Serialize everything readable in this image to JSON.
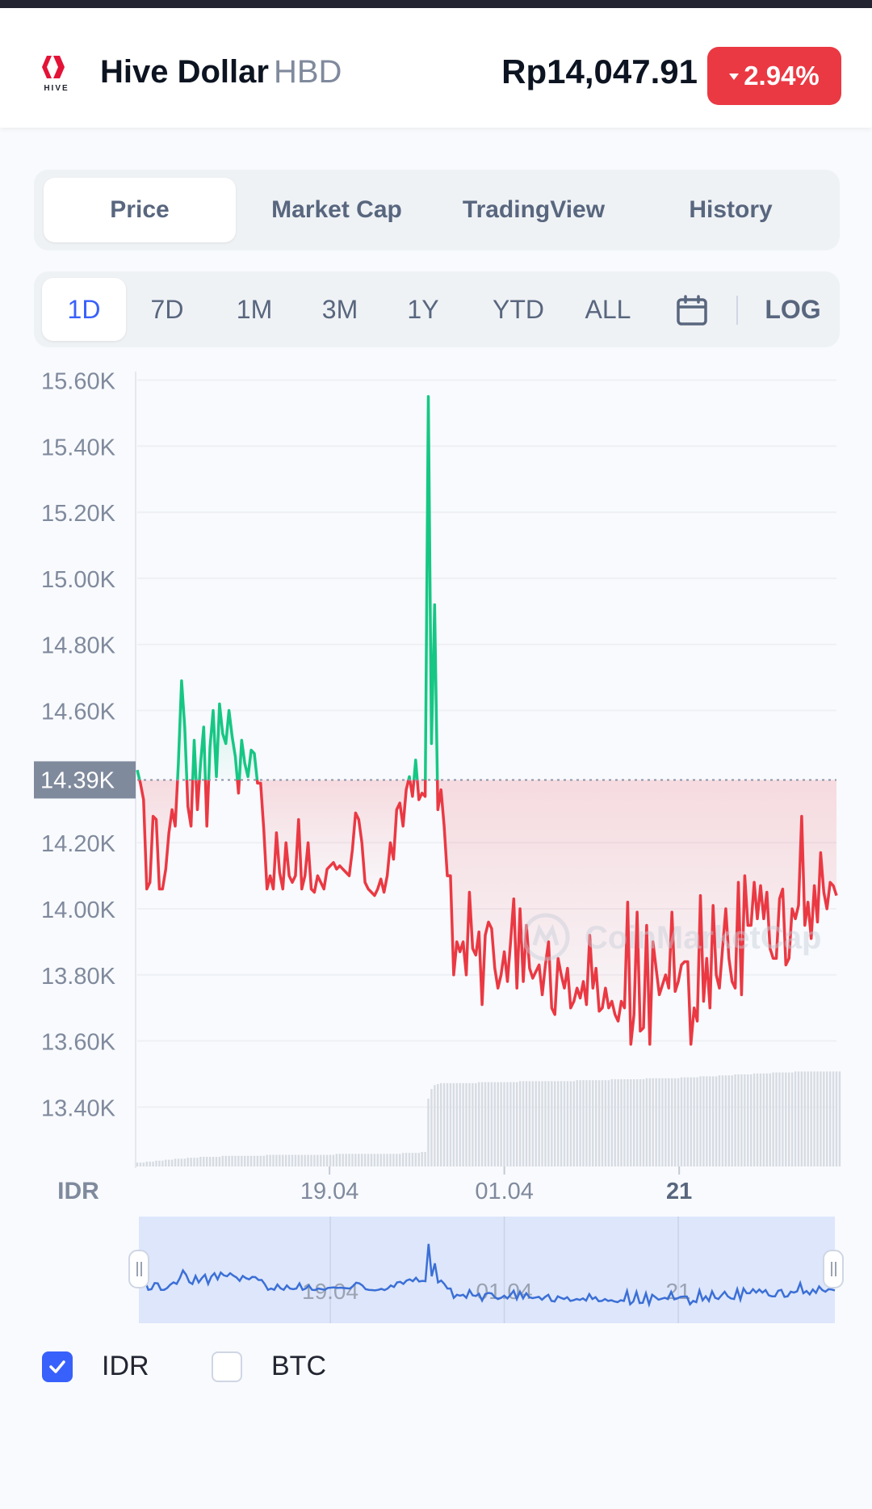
{
  "header": {
    "name": "Hive Dollar",
    "symbol": "HBD",
    "price": "Rp14,047.91",
    "change": "2.94%",
    "change_color": "#ea3943",
    "logo_text": "HIVE"
  },
  "tabs": [
    {
      "label": "Price",
      "active": true
    },
    {
      "label": "Market Cap",
      "active": false
    },
    {
      "label": "TradingView",
      "active": false
    },
    {
      "label": "History",
      "active": false
    }
  ],
  "ranges": [
    {
      "label": "1D",
      "active": true
    },
    {
      "label": "7D",
      "active": false
    },
    {
      "label": "1M",
      "active": false
    },
    {
      "label": "3M",
      "active": false
    },
    {
      "label": "1Y",
      "active": false
    },
    {
      "label": "YTD",
      "active": false
    },
    {
      "label": "ALL",
      "active": false
    }
  ],
  "log_label": "LOG",
  "calendar_icon": "calendar-icon",
  "watermark": "CoinMarketCap",
  "chart_data": {
    "type": "line",
    "ylabel": "IDR",
    "yticks": [
      "15.60K",
      "15.40K",
      "15.20K",
      "15.00K",
      "14.80K",
      "14.60K",
      "14.20K",
      "14.00K",
      "13.80K",
      "13.60K",
      "13.40K"
    ],
    "ylim": [
      13230,
      15650
    ],
    "xticks": [
      "19.04",
      "01.04",
      "21"
    ],
    "reference_value": 14390,
    "reference_label": "14.39K",
    "up_color": "#16c784",
    "down_color": "#ea3943",
    "series": [
      {
        "values": [
          14420,
          14380,
          14330,
          14060,
          14080,
          14280,
          14270,
          14060,
          14060,
          14120,
          14230,
          14300,
          14250,
          14440,
          14690,
          14550,
          14310,
          14250,
          14510,
          14300,
          14440,
          14550,
          14250,
          14490,
          14600,
          14400,
          14620,
          14530,
          14500,
          14600,
          14520,
          14460,
          14350,
          14510,
          14440,
          14400,
          14480,
          14470,
          14380,
          14380,
          14240,
          14060,
          14100,
          14060,
          14230,
          14110,
          14060,
          14200,
          14100,
          14080,
          14100,
          14270,
          14060,
          14100,
          14200,
          14060,
          14050,
          14100,
          14080,
          14060,
          14120,
          14130,
          14140,
          14120,
          14130,
          14120,
          14110,
          14100,
          14180,
          14290,
          14270,
          14200,
          14080,
          14060,
          14050,
          14040,
          14060,
          14090,
          14050,
          14100,
          14200,
          14150,
          14300,
          14320,
          14250,
          14360,
          14400,
          14340,
          14450,
          14330,
          14350,
          14340,
          15550,
          14500,
          14920,
          14300,
          14360,
          14250,
          14100,
          14100,
          13800,
          13900,
          13870,
          13900,
          13800,
          14050,
          13880,
          13860,
          13930,
          13710,
          13920,
          13960,
          13940,
          13820,
          13760,
          13800,
          13870,
          13780,
          13900,
          14030,
          13760,
          14000,
          13780,
          13950,
          13820,
          13790,
          13810,
          13830,
          13740,
          13830,
          13900,
          13700,
          13680,
          13850,
          13800,
          13760,
          13820,
          13700,
          13720,
          13760,
          13730,
          13780,
          13710,
          13920,
          13760,
          13820,
          13690,
          13700,
          13760,
          13700,
          13720,
          13680,
          13660,
          13720,
          13700,
          14020,
          13590,
          13680,
          13990,
          13630,
          13640,
          13950,
          13590,
          13900,
          13820,
          13740,
          13770,
          13800,
          13760,
          13990,
          13750,
          13780,
          13830,
          13840,
          13840,
          13590,
          13700,
          13660,
          14040,
          13720,
          13850,
          13700,
          14010,
          13800,
          13760,
          13880,
          14000,
          13850,
          13780,
          13760,
          14080,
          13740,
          14100,
          13950,
          13950,
          14080,
          13970,
          14070,
          13970,
          14050,
          13880,
          13850,
          13850,
          14030,
          14060,
          13830,
          13850,
          14000,
          13970,
          14010,
          14280,
          13950,
          14020,
          13910,
          14070,
          13960,
          14170,
          14050,
          14000,
          14080,
          14070,
          14040
        ]
      }
    ],
    "volume": {
      "values": [
        0.04,
        0.04,
        0.04,
        0.05,
        0.05,
        0.05,
        0.06,
        0.06,
        0.06,
        0.07,
        0.07,
        0.07,
        0.08,
        0.08,
        0.08,
        0.08,
        0.09,
        0.09,
        0.09,
        0.09,
        0.1,
        0.1,
        0.1,
        0.1,
        0.1,
        0.1,
        0.1,
        0.11,
        0.11,
        0.11,
        0.11,
        0.11,
        0.11,
        0.11,
        0.11,
        0.11,
        0.11,
        0.11,
        0.11,
        0.11,
        0.11,
        0.12,
        0.12,
        0.12,
        0.12,
        0.12,
        0.12,
        0.12,
        0.12,
        0.12,
        0.12,
        0.12,
        0.12,
        0.12,
        0.12,
        0.12,
        0.12,
        0.12,
        0.12,
        0.12,
        0.12,
        0.12,
        0.12,
        0.13,
        0.13,
        0.13,
        0.13,
        0.13,
        0.13,
        0.13,
        0.13,
        0.13,
        0.13,
        0.13,
        0.13,
        0.13,
        0.13,
        0.13,
        0.13,
        0.13,
        0.13,
        0.13,
        0.13,
        0.13,
        0.14,
        0.14,
        0.14,
        0.14,
        0.14,
        0.14,
        0.15,
        0.15,
        0.7,
        0.8,
        0.84,
        0.85,
        0.86,
        0.86,
        0.86,
        0.86,
        0.86,
        0.86,
        0.86,
        0.86,
        0.86,
        0.86,
        0.86,
        0.86,
        0.87,
        0.87,
        0.87,
        0.87,
        0.87,
        0.87,
        0.87,
        0.87,
        0.87,
        0.87,
        0.87,
        0.87,
        0.87,
        0.88,
        0.88,
        0.88,
        0.88,
        0.88,
        0.88,
        0.88,
        0.88,
        0.88,
        0.88,
        0.88,
        0.88,
        0.88,
        0.88,
        0.88,
        0.88,
        0.88,
        0.88,
        0.89,
        0.89,
        0.89,
        0.89,
        0.89,
        0.89,
        0.89,
        0.89,
        0.89,
        0.89,
        0.89,
        0.9,
        0.9,
        0.9,
        0.9,
        0.9,
        0.9,
        0.9,
        0.9,
        0.9,
        0.9,
        0.9,
        0.91,
        0.91,
        0.91,
        0.91,
        0.91,
        0.91,
        0.91,
        0.91,
        0.91,
        0.91,
        0.91,
        0.92,
        0.92,
        0.92,
        0.92,
        0.92,
        0.92,
        0.93,
        0.93,
        0.93,
        0.93,
        0.93,
        0.93,
        0.94,
        0.94,
        0.94,
        0.94,
        0.94,
        0.95,
        0.95,
        0.95,
        0.95,
        0.95,
        0.95,
        0.96,
        0.96,
        0.96,
        0.96,
        0.96,
        0.96,
        0.97,
        0.97,
        0.97,
        0.97,
        0.97,
        0.97,
        0.97,
        0.98,
        0.98,
        0.98,
        0.98,
        0.98,
        0.98,
        0.98,
        0.98,
        0.98,
        0.98,
        0.98,
        0.98,
        0.98,
        0.98,
        0.98
      ]
    }
  },
  "navigator": {
    "labels": [
      "19.04",
      "01.04",
      "21"
    ]
  },
  "legend": [
    {
      "label": "IDR",
      "checked": true
    },
    {
      "label": "BTC",
      "checked": false
    }
  ],
  "colors": {
    "accent": "#3861fb",
    "up": "#16c784",
    "down": "#ea3943",
    "navigator_line": "#3b6fd6"
  }
}
